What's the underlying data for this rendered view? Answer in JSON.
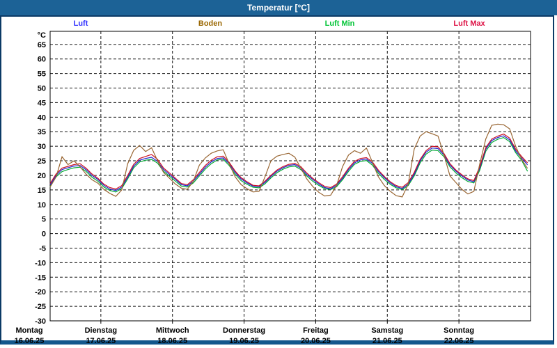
{
  "window": {
    "title": "Temperatur [°C]"
  },
  "legend": [
    {
      "label": "Luft",
      "color": "#3333ff",
      "x": 114
    },
    {
      "label": "Boden",
      "color": "#996600",
      "x": 300
    },
    {
      "label": "Luft Min",
      "color": "#00c435",
      "x": 486
    },
    {
      "label": "Luft Max",
      "color": "#dd1144",
      "x": 672
    }
  ],
  "chart_data": {
    "type": "line",
    "title": "Temperatur [°C]",
    "ylabel": "°C",
    "ylim": [
      -30,
      69.5
    ],
    "yticks": {
      "min": -30,
      "max": 65,
      "step": 5
    },
    "grid": true,
    "xlim": [
      7,
      168
    ],
    "x_unit": "hours_since_monday_00:00",
    "days": [
      {
        "name": "Montag",
        "date": "16.06.25",
        "t": 0
      },
      {
        "name": "Dienstag",
        "date": "17.06.25",
        "t": 24
      },
      {
        "name": "Mittwoch",
        "date": "18.06.25",
        "t": 48
      },
      {
        "name": "Donnerstag",
        "date": "19.06.25",
        "t": 72
      },
      {
        "name": "Freitag",
        "date": "20.06.25",
        "t": 96
      },
      {
        "name": "Samstag",
        "date": "21.06.25",
        "t": 120
      },
      {
        "name": "Sonntag",
        "date": "22.06.25",
        "t": 144
      }
    ],
    "hours": [
      7,
      9,
      11,
      13,
      15,
      17,
      19,
      21,
      23,
      25,
      27,
      29,
      31,
      33,
      35,
      37,
      39,
      41,
      43,
      45,
      47,
      49,
      51,
      53,
      55,
      57,
      59,
      61,
      63,
      65,
      67,
      69,
      71,
      73,
      75,
      77,
      79,
      81,
      83,
      85,
      87,
      89,
      91,
      93,
      95,
      97,
      99,
      101,
      103,
      105,
      107,
      109,
      111,
      113,
      115,
      117,
      119,
      121,
      123,
      125,
      127,
      129,
      131,
      133,
      135,
      137,
      139,
      141,
      143,
      145,
      147,
      149,
      151,
      153,
      155,
      157,
      159,
      161,
      163,
      165,
      167
    ],
    "series": [
      {
        "name": "Luft Min",
        "color": "#00a833",
        "values": [
          16.2,
          19.5,
          21.3,
          22.0,
          22.6,
          22.8,
          21.4,
          19.4,
          18.0,
          16.0,
          14.8,
          14.3,
          15.5,
          18.8,
          22.6,
          24.6,
          25.2,
          25.5,
          24.2,
          21.4,
          19.7,
          18.0,
          16.3,
          16.0,
          17.4,
          19.8,
          22.2,
          24.0,
          25.3,
          25.5,
          23.4,
          20.4,
          18.2,
          16.9,
          15.9,
          15.7,
          17.1,
          19.1,
          20.9,
          22.1,
          22.9,
          23.2,
          22.0,
          19.8,
          18.0,
          16.6,
          15.4,
          15.1,
          16.1,
          18.5,
          21.4,
          23.8,
          24.8,
          25.1,
          23.5,
          20.7,
          18.6,
          16.9,
          15.7,
          15.1,
          16.5,
          19.8,
          24.3,
          27.3,
          28.7,
          28.5,
          26.4,
          22.9,
          20.8,
          19.2,
          17.9,
          17.4,
          21.8,
          28.3,
          31.3,
          32.4,
          33.0,
          31.6,
          27.8,
          25.2,
          21.4
        ]
      },
      {
        "name": "Luft",
        "color": "#2222cc",
        "values": [
          16.7,
          20.0,
          22.0,
          22.6,
          23.2,
          23.4,
          22.0,
          20.0,
          18.6,
          16.6,
          15.3,
          14.8,
          16.0,
          19.4,
          23.2,
          25.2,
          25.8,
          26.2,
          24.8,
          22.0,
          20.3,
          18.6,
          16.8,
          16.4,
          18.0,
          20.4,
          22.8,
          24.6,
          25.8,
          26.0,
          24.0,
          21.0,
          18.8,
          17.4,
          16.3,
          16.1,
          17.6,
          19.6,
          21.4,
          22.6,
          23.4,
          23.7,
          22.5,
          20.3,
          18.6,
          17.1,
          15.8,
          15.4,
          16.6,
          19.0,
          22.0,
          24.3,
          25.3,
          25.6,
          24.1,
          21.3,
          19.2,
          17.4,
          16.1,
          15.5,
          17.0,
          20.4,
          25.0,
          28.0,
          29.4,
          29.2,
          27.0,
          23.5,
          21.4,
          19.8,
          18.4,
          17.8,
          22.5,
          29.0,
          32.0,
          33.0,
          33.6,
          32.2,
          28.4,
          26.0,
          23.6
        ]
      },
      {
        "name": "Luft Max",
        "color": "#cc1122",
        "values": [
          17.2,
          20.5,
          22.5,
          23.1,
          23.7,
          24.0,
          22.5,
          20.5,
          19.0,
          17.0,
          15.8,
          15.3,
          16.5,
          20.0,
          23.8,
          25.8,
          26.5,
          27.2,
          25.5,
          22.5,
          20.8,
          19.0,
          17.2,
          16.8,
          18.5,
          21.0,
          23.4,
          25.2,
          26.4,
          26.6,
          24.5,
          21.5,
          19.2,
          17.8,
          16.6,
          16.4,
          18.0,
          20.0,
          21.8,
          23.0,
          23.8,
          24.1,
          23.0,
          20.8,
          19.0,
          17.5,
          16.2,
          15.8,
          17.0,
          19.5,
          22.5,
          24.8,
          25.8,
          26.1,
          24.6,
          21.8,
          19.6,
          17.8,
          16.5,
          15.9,
          17.5,
          21.0,
          25.5,
          28.5,
          30.0,
          29.8,
          27.5,
          24.0,
          21.8,
          20.2,
          18.8,
          18.2,
          23.0,
          29.5,
          32.5,
          33.5,
          34.2,
          32.8,
          29.0,
          26.5,
          24.3
        ]
      },
      {
        "name": "Boden",
        "color": "#996633",
        "values": [
          16.0,
          19.5,
          26.4,
          23.7,
          25.0,
          23.0,
          20.5,
          18.5,
          17.3,
          15.2,
          13.8,
          12.8,
          15.0,
          24.0,
          28.6,
          30.3,
          28.2,
          29.5,
          25.0,
          21.0,
          19.0,
          17.0,
          15.6,
          15.2,
          18.0,
          23.5,
          26.0,
          27.6,
          28.4,
          28.8,
          24.0,
          19.5,
          16.8,
          15.4,
          14.3,
          14.5,
          19.5,
          25.0,
          26.6,
          27.2,
          27.6,
          26.3,
          22.5,
          18.8,
          16.2,
          14.2,
          12.9,
          13.2,
          16.5,
          23.0,
          27.0,
          28.5,
          27.6,
          29.4,
          24.5,
          19.5,
          16.5,
          14.5,
          13.0,
          12.6,
          17.0,
          29.0,
          33.5,
          35.0,
          34.3,
          33.5,
          27.0,
          19.8,
          17.5,
          15.2,
          13.6,
          14.5,
          24.0,
          32.5,
          37.2,
          37.6,
          37.4,
          36.0,
          30.0,
          25.5,
          22.4
        ]
      }
    ]
  }
}
